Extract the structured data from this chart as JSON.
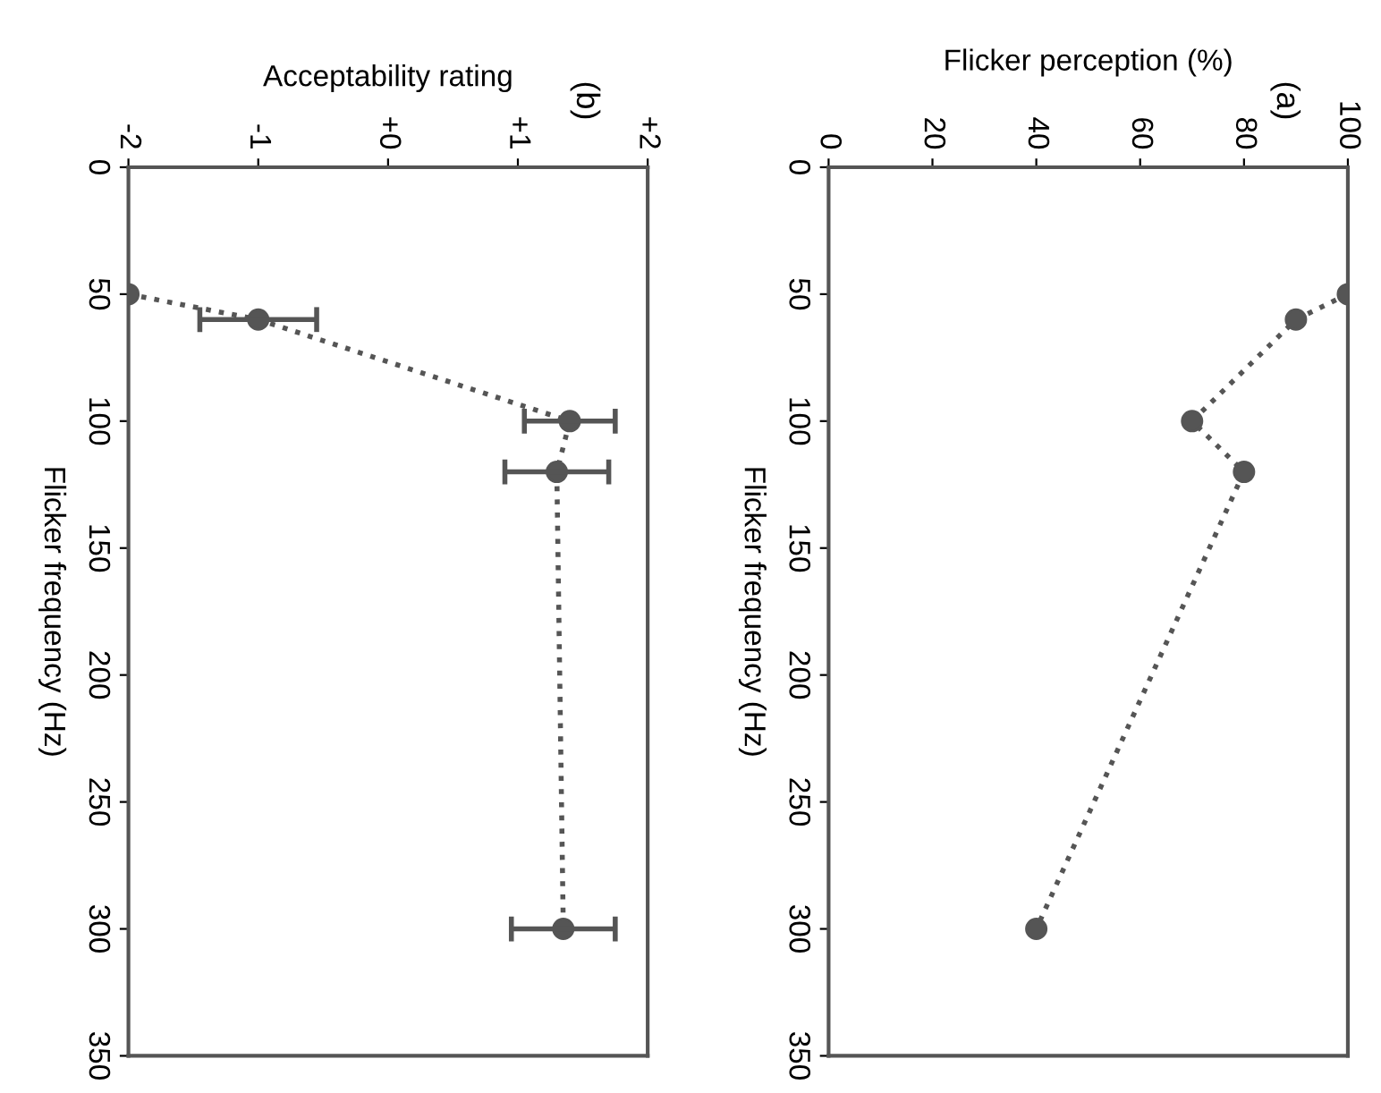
{
  "chart_data": [
    {
      "type": "line",
      "xlabel": "Flicker perception (%)",
      "ylabel": "Flicker frequency (Hz)",
      "annotations": [
        "(a)"
      ],
      "x": [
        100,
        90,
        70,
        80,
        40
      ],
      "series": [
        {
          "color": "#555555",
          "values": [
            50,
            60,
            100,
            120,
            300
          ]
        }
      ],
      "ylim": [
        350,
        0
      ],
      "yticks": [
        0,
        50,
        100,
        150,
        200,
        250,
        300,
        350
      ],
      "xlim": [
        0,
        100
      ],
      "xticks": [
        0,
        20,
        40,
        60,
        80,
        100
      ],
      "marker": "circle",
      "line_style": "dotted"
    },
    {
      "type": "line",
      "xlabel": "Acceptability rating",
      "ylabel": "Flicker frequency (Hz)",
      "annotations": [
        "(b)"
      ],
      "x": [
        -2,
        -1,
        1.4,
        1.3,
        1.35
      ],
      "series": [
        {
          "color": "#555555",
          "values": [
            50,
            60,
            100,
            120,
            300
          ],
          "xerrors": [
            null,
            0.45,
            0.35,
            0.4,
            0.4
          ]
        }
      ],
      "ylim": [
        350,
        0
      ],
      "yticks": [
        0,
        50,
        100,
        150,
        200,
        250,
        300,
        350
      ],
      "xlim": [
        -2,
        2
      ],
      "xticks": [
        {
          "value": -2,
          "label": "-2"
        },
        {
          "value": -1,
          "label": "-1"
        },
        {
          "value": 0,
          "label": "+0"
        },
        {
          "value": 1,
          "label": "+1"
        },
        {
          "value": 2,
          "label": "+2"
        }
      ],
      "marker": "circle",
      "line_style": "dotted"
    }
  ]
}
